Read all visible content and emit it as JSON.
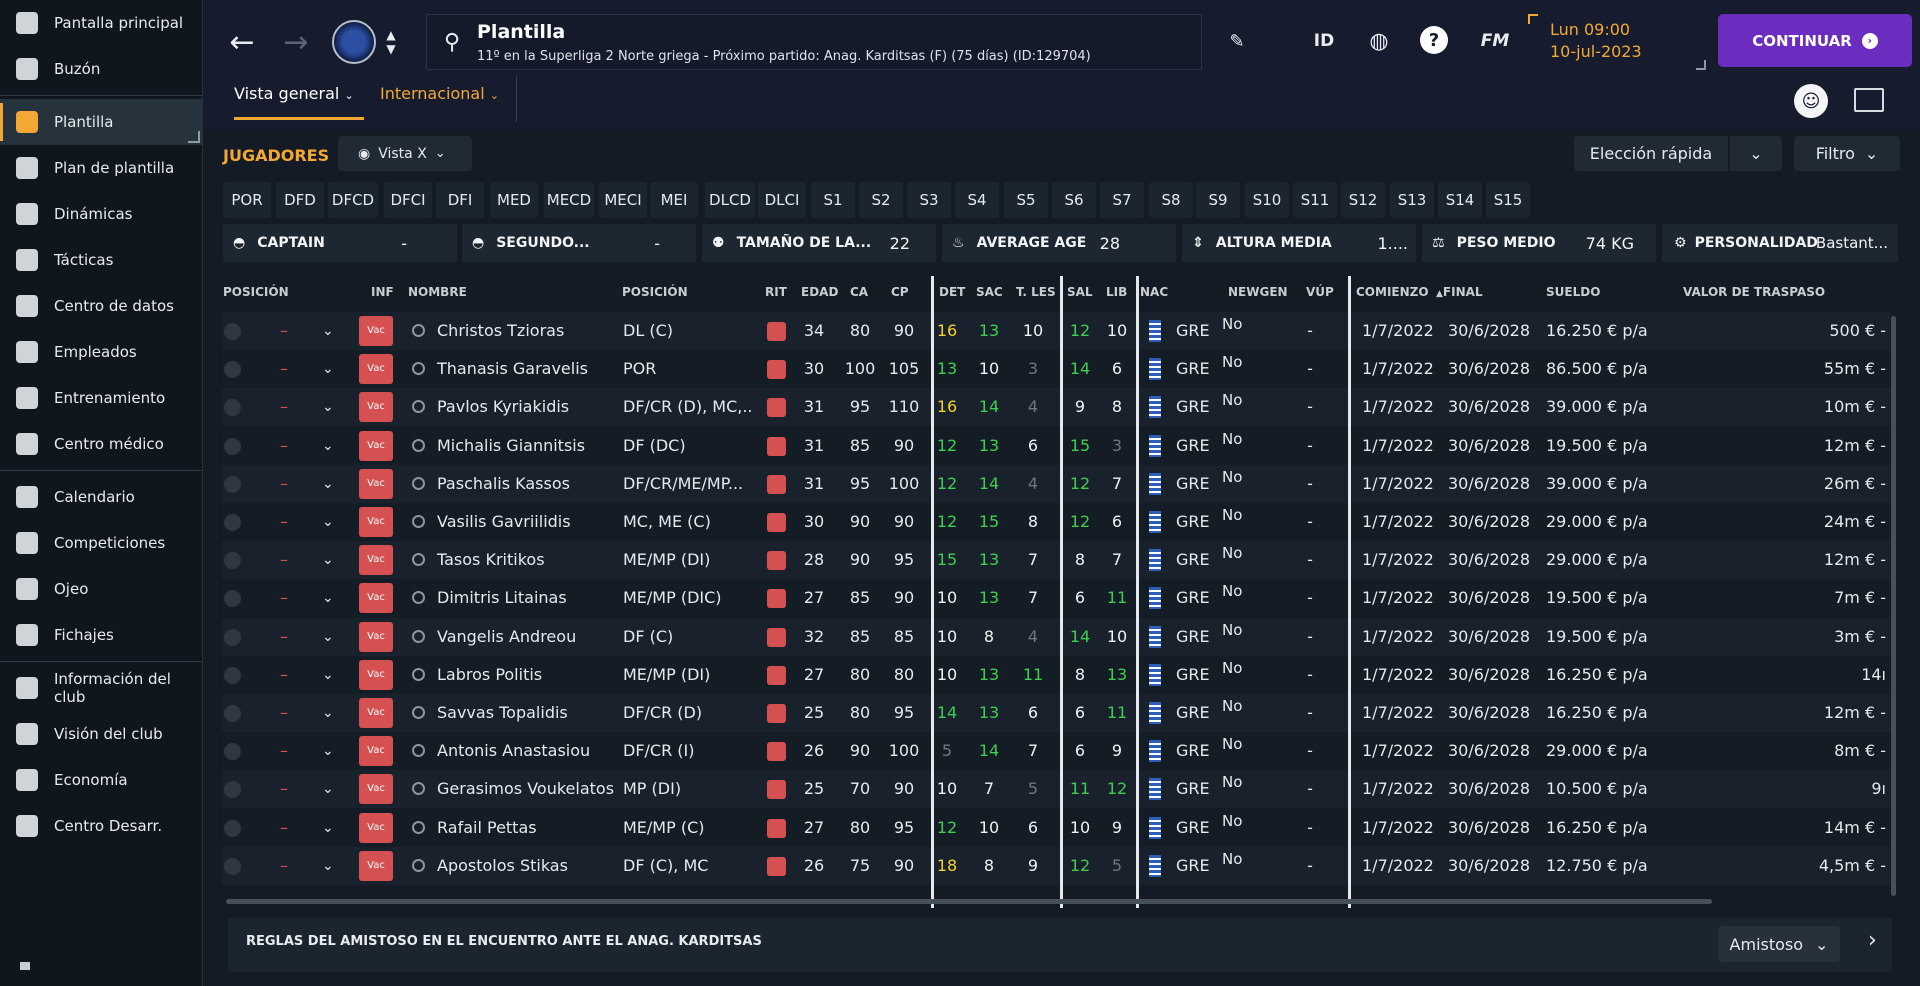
{
  "sidebar": {
    "items": [
      {
        "label": "Pantalla principal",
        "icon": "home-icon"
      },
      {
        "label": "Buzón",
        "icon": "inbox-icon"
      },
      {
        "label": "Plantilla",
        "icon": "squad-shirt-icon"
      },
      {
        "label": "Plan de plantilla",
        "icon": "clipboard-icon"
      },
      {
        "label": "Dinámicas",
        "icon": "dynamics-icon"
      },
      {
        "label": "Tácticas",
        "icon": "tactics-icon"
      },
      {
        "label": "Centro de datos",
        "icon": "data-icon"
      },
      {
        "label": "Empleados",
        "icon": "staff-icon"
      },
      {
        "label": "Entrenamiento",
        "icon": "training-icon"
      },
      {
        "label": "Centro médico",
        "icon": "medical-icon"
      },
      {
        "label": "Calendario",
        "icon": "calendar-icon"
      },
      {
        "label": "Competiciones",
        "icon": "trophy-icon"
      },
      {
        "label": "Ojeo",
        "icon": "scouting-icon"
      },
      {
        "label": "Fichajes",
        "icon": "transfers-icon"
      },
      {
        "label": "Información del club",
        "icon": "club-shield-icon"
      },
      {
        "label": "Visión del club",
        "icon": "briefcase-icon"
      },
      {
        "label": "Economía",
        "icon": "finances-icon"
      },
      {
        "label": "Centro Desarr.",
        "icon": "development-icon"
      }
    ]
  },
  "header": {
    "title": "Plantilla",
    "subtitle": "11º en la Superliga 2 Norte griega - Próximo partido: Anag. Karditsas (F) (75 días) (ID:129704)",
    "id_label": "ID",
    "fm_label": "FM",
    "day": "Lun 09:00",
    "date": "10-jul-2023",
    "continue": "CONTINUAR"
  },
  "tabs": {
    "overview": "Vista general",
    "international": "Internacional"
  },
  "toolbar": {
    "jugadores": "JUGADORES",
    "view": "Vista X",
    "quick_pick": "Elección rápida",
    "filter": "Filtro"
  },
  "positions": [
    "POR",
    "DFD",
    "DFCD",
    "DFCI",
    "DFI",
    "MED",
    "MECD",
    "MECI",
    "MEI",
    "DLCD",
    "DLCI",
    "S1",
    "S2",
    "S3",
    "S4",
    "S5",
    "S6",
    "S7",
    "S8",
    "S9",
    "S10",
    "S11",
    "S12",
    "S13",
    "S14",
    "S15"
  ],
  "stats": {
    "captain": {
      "label": "CAPTAIN",
      "value": "-"
    },
    "second": {
      "label": "SEGUNDO...",
      "value": "-"
    },
    "size": {
      "label": "TAMAÑO DE LA...",
      "value": "22"
    },
    "age": {
      "label": "AVERAGE AGE",
      "value": "28"
    },
    "height": {
      "label": "ALTURA MEDIA",
      "value": "1...."
    },
    "weight": {
      "label": "PESO MEDIO",
      "value": "74 KG"
    },
    "personality": {
      "label": "PERSONALIDAD",
      "value": "Bastant..."
    }
  },
  "columns": {
    "posicion": "POSICIÓN",
    "inf": "INF",
    "nombre": "NOMBRE",
    "posicion2": "POSICIÓN",
    "rit": "RIT",
    "edad": "EDAD",
    "ca": "CA",
    "cp": "CP",
    "det": "DET",
    "sac": "SAC",
    "tles": "T. LES",
    "sal": "SAL",
    "lib": "LIB",
    "nac": "NAC",
    "newgen": "NEWGEN",
    "vup": "VÚP",
    "comienzo": "COMIENZO",
    "final": "FINAL",
    "sueldo": "SUELDO",
    "valor": "VALOR DE TRASPASO"
  },
  "row_common": {
    "dash": "–",
    "vac": "Vac",
    "nac": "GRE",
    "newgen": "No",
    "vup": "-"
  },
  "rows": [
    {
      "name": "Christos Tzioras",
      "pos": "DL (C)",
      "edad": "34",
      "ca": "80",
      "cp": "90",
      "det": "16",
      "sac": "13",
      "tles": "10",
      "sal": "12",
      "lib": "10",
      "start": "1/7/2022",
      "end": "30/6/2028",
      "wage": "16.250 € p/a",
      "value": "500 € -"
    },
    {
      "name": "Thanasis Garavelis",
      "pos": "POR",
      "edad": "30",
      "ca": "100",
      "cp": "105",
      "det": "13",
      "sac": "10",
      "tles": "3",
      "sal": "14",
      "lib": "6",
      "start": "1/7/2022",
      "end": "30/6/2028",
      "wage": "86.500 € p/a",
      "value": "55m € -"
    },
    {
      "name": "Pavlos Kyriakidis",
      "pos": "DF/CR (D), MC,...",
      "edad": "31",
      "ca": "95",
      "cp": "110",
      "det": "16",
      "sac": "14",
      "tles": "4",
      "sal": "9",
      "lib": "8",
      "start": "1/7/2022",
      "end": "30/6/2028",
      "wage": "39.000 € p/a",
      "value": "10m € -"
    },
    {
      "name": "Michalis Giannitsis",
      "pos": "DF (DC)",
      "edad": "31",
      "ca": "85",
      "cp": "90",
      "det": "12",
      "sac": "13",
      "tles": "6",
      "sal": "15",
      "lib": "3",
      "start": "1/7/2022",
      "end": "30/6/2028",
      "wage": "19.500 € p/a",
      "value": "12m € -"
    },
    {
      "name": "Paschalis Kassos",
      "pos": "DF/CR/ME/MP...",
      "edad": "31",
      "ca": "95",
      "cp": "100",
      "det": "12",
      "sac": "14",
      "tles": "4",
      "sal": "12",
      "lib": "7",
      "start": "1/7/2022",
      "end": "30/6/2028",
      "wage": "39.000 € p/a",
      "value": "26m € -"
    },
    {
      "name": "Vasilis Gavriilidis",
      "pos": "MC, ME (C)",
      "edad": "30",
      "ca": "90",
      "cp": "90",
      "det": "12",
      "sac": "15",
      "tles": "8",
      "sal": "12",
      "lib": "6",
      "start": "1/7/2022",
      "end": "30/6/2028",
      "wage": "29.000 € p/a",
      "value": "24m € -"
    },
    {
      "name": "Tasos Kritikos",
      "pos": "ME/MP (DI)",
      "edad": "28",
      "ca": "90",
      "cp": "95",
      "det": "15",
      "sac": "13",
      "tles": "7",
      "sal": "8",
      "lib": "7",
      "start": "1/7/2022",
      "end": "30/6/2028",
      "wage": "29.000 € p/a",
      "value": "12m € -"
    },
    {
      "name": "Dimitris Litainas",
      "pos": "ME/MP (DIC)",
      "edad": "27",
      "ca": "85",
      "cp": "90",
      "det": "10",
      "sac": "13",
      "tles": "7",
      "sal": "6",
      "lib": "11",
      "start": "1/7/2022",
      "end": "30/6/2028",
      "wage": "19.500 € p/a",
      "value": "7m € -"
    },
    {
      "name": "Vangelis Andreou",
      "pos": "DF (C)",
      "edad": "32",
      "ca": "85",
      "cp": "85",
      "det": "10",
      "sac": "8",
      "tles": "4",
      "sal": "14",
      "lib": "10",
      "start": "1/7/2022",
      "end": "30/6/2028",
      "wage": "19.500 € p/a",
      "value": "3m € -"
    },
    {
      "name": "Labros Politis",
      "pos": "ME/MP (DI)",
      "edad": "27",
      "ca": "80",
      "cp": "80",
      "det": "10",
      "sac": "13",
      "tles": "11",
      "sal": "8",
      "lib": "13",
      "start": "1/7/2022",
      "end": "30/6/2028",
      "wage": "16.250 € p/a",
      "value": "14ı"
    },
    {
      "name": "Savvas Topalidis",
      "pos": "DF/CR (D)",
      "edad": "25",
      "ca": "80",
      "cp": "95",
      "det": "14",
      "sac": "13",
      "tles": "6",
      "sal": "6",
      "lib": "11",
      "start": "1/7/2022",
      "end": "30/6/2028",
      "wage": "16.250 € p/a",
      "value": "12m € -"
    },
    {
      "name": "Antonis Anastasiou",
      "pos": "DF/CR (I)",
      "edad": "26",
      "ca": "90",
      "cp": "100",
      "det": "5",
      "sac": "14",
      "tles": "7",
      "sal": "6",
      "lib": "9",
      "start": "1/7/2022",
      "end": "30/6/2028",
      "wage": "29.000 € p/a",
      "value": "8m € -"
    },
    {
      "name": "Gerasimos Voukelatos",
      "pos": "MP (DI)",
      "edad": "25",
      "ca": "70",
      "cp": "90",
      "det": "10",
      "sac": "7",
      "tles": "5",
      "sal": "11",
      "lib": "12",
      "start": "1/7/2022",
      "end": "30/6/2028",
      "wage": "10.500 € p/a",
      "value": "9ı"
    },
    {
      "name": "Rafail Pettas",
      "pos": "ME/MP (C)",
      "edad": "27",
      "ca": "80",
      "cp": "95",
      "det": "12",
      "sac": "10",
      "tles": "6",
      "sal": "10",
      "lib": "9",
      "start": "1/7/2022",
      "end": "30/6/2028",
      "wage": "16.250 € p/a",
      "value": "14m € -"
    },
    {
      "name": "Apostolos Stikas",
      "pos": "DF (C), MC",
      "edad": "26",
      "ca": "75",
      "cp": "90",
      "det": "18",
      "sac": "8",
      "tles": "9",
      "sal": "12",
      "lib": "5",
      "start": "1/7/2022",
      "end": "30/6/2028",
      "wage": "12.750 € p/a",
      "value": "4,5m € -"
    }
  ],
  "footer": {
    "rules": "REGLAS DEL AMISTOSO EN EL ENCUENTRO ANTE EL ANAG. KARDITSAS",
    "match_type": "Amistoso"
  }
}
